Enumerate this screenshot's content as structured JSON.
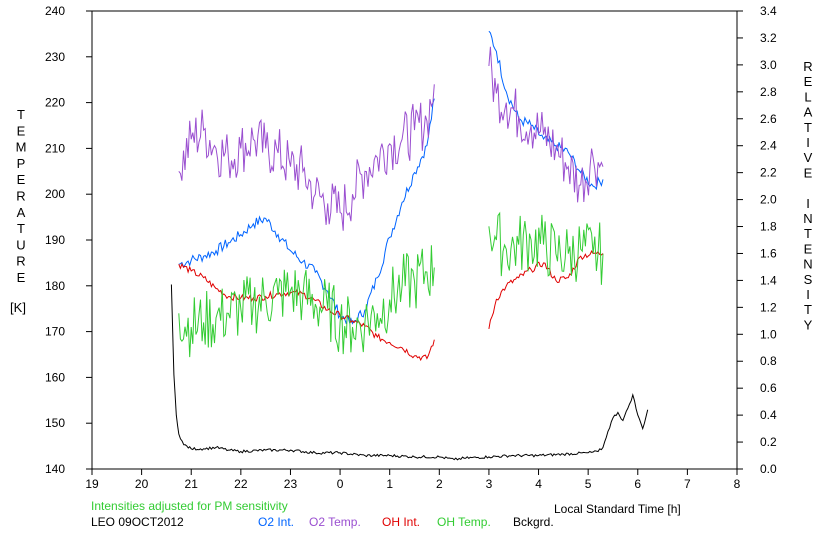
{
  "chart_data": {
    "type": "line",
    "title": "",
    "xlabel": "Local Standard Time [h]",
    "ylabel_left": "TEMPERATURE [K]",
    "ylabel_left_letters": [
      "T",
      "E",
      "M",
      "P",
      "E",
      "R",
      "A",
      "T",
      "U",
      "R",
      "E"
    ],
    "ylabel_left_unit": "[K]",
    "ylabel_right": "RELATIVE INTENSITY",
    "ylabel_right_letters": [
      "R",
      "E",
      "L",
      "A",
      "T",
      "I",
      "V",
      "E",
      " ",
      "I",
      "N",
      "T",
      "E",
      "N",
      "S",
      "I",
      "T",
      "Y"
    ],
    "x_ticks": [
      "19",
      "20",
      "21",
      "22",
      "23",
      "0",
      "1",
      "2",
      "3",
      "4",
      "5",
      "6",
      "7",
      "8"
    ],
    "xlim": [
      19,
      32
    ],
    "ylim_left": [
      140,
      240
    ],
    "y_left_ticks": [
      "140",
      "150",
      "160",
      "170",
      "180",
      "190",
      "200",
      "210",
      "220",
      "230",
      "240"
    ],
    "ylim_right": [
      0.0,
      3.4
    ],
    "y_right_ticks": [
      "0.0",
      "0.2",
      "0.4",
      "0.6",
      "0.8",
      "1.0",
      "1.2",
      "1.4",
      "1.6",
      "1.8",
      "2.0",
      "2.2",
      "2.4",
      "2.6",
      "2.8",
      "3.0",
      "3.2",
      "3.4"
    ],
    "grid": false,
    "note": "Intensities adjusted for PM sensitivity",
    "station_label": "LEO 09OCT2012",
    "series": [
      {
        "name": "O2 Int.",
        "axis": "right",
        "color": "#0064ff",
        "x": [
          20.75,
          21.0,
          21.25,
          21.5,
          21.75,
          22.0,
          22.25,
          22.5,
          22.75,
          23.0,
          23.25,
          23.5,
          23.75,
          24.0,
          24.25,
          24.5,
          24.75,
          25.0,
          25.25,
          25.5,
          25.75,
          25.9,
          27.0,
          27.15,
          27.35,
          27.6,
          27.85,
          28.1,
          28.35,
          28.6,
          28.85,
          29.1,
          29.3
        ],
        "y": [
          1.52,
          1.55,
          1.58,
          1.62,
          1.68,
          1.74,
          1.82,
          1.86,
          1.74,
          1.62,
          1.54,
          1.46,
          1.32,
          1.14,
          1.08,
          1.18,
          1.42,
          1.72,
          1.98,
          2.2,
          2.4,
          2.75,
          3.25,
          3.1,
          2.8,
          2.6,
          2.55,
          2.45,
          2.4,
          2.35,
          2.2,
          2.1,
          2.15
        ]
      },
      {
        "name": "O2 Temp.",
        "axis": "left",
        "color": "#9a4fd0",
        "x": [
          20.75,
          21.0,
          21.25,
          21.5,
          21.75,
          22.0,
          22.25,
          22.5,
          22.75,
          23.0,
          23.25,
          23.5,
          23.75,
          24.0,
          24.25,
          24.5,
          24.75,
          25.0,
          25.25,
          25.5,
          25.75,
          25.9,
          27.0,
          27.15,
          27.35,
          27.6,
          27.85,
          28.1,
          28.35,
          28.6,
          28.85,
          29.1,
          29.3
        ],
        "y": [
          205,
          212,
          214,
          210,
          208,
          210,
          212,
          210,
          209,
          206,
          205,
          200,
          198,
          196,
          200,
          205,
          208,
          211,
          212,
          214,
          216,
          224,
          228,
          222,
          220,
          217,
          215,
          213,
          210,
          206,
          202,
          208,
          206
        ]
      },
      {
        "name": "OH Int.",
        "axis": "right",
        "color": "#e00000",
        "x": [
          20.75,
          21.0,
          21.25,
          21.5,
          21.75,
          22.0,
          22.25,
          22.5,
          22.75,
          23.0,
          23.25,
          23.5,
          23.75,
          24.0,
          24.25,
          24.5,
          24.75,
          25.0,
          25.25,
          25.5,
          25.75,
          25.9,
          27.0,
          27.15,
          27.35,
          27.6,
          27.85,
          28.1,
          28.35,
          28.6,
          28.85,
          29.1,
          29.3
        ],
        "y": [
          1.52,
          1.47,
          1.42,
          1.34,
          1.28,
          1.27,
          1.27,
          1.28,
          1.3,
          1.31,
          1.3,
          1.25,
          1.18,
          1.14,
          1.1,
          1.06,
          0.98,
          0.94,
          0.9,
          0.84,
          0.82,
          0.96,
          1.04,
          1.26,
          1.36,
          1.42,
          1.48,
          1.53,
          1.4,
          1.42,
          1.58,
          1.6,
          1.6
        ]
      },
      {
        "name": "OH Temp.",
        "axis": "left",
        "color": "#33cc33",
        "x": [
          20.75,
          21.0,
          21.25,
          21.5,
          21.75,
          22.0,
          22.25,
          22.5,
          22.75,
          23.0,
          23.25,
          23.5,
          23.75,
          24.0,
          24.25,
          24.5,
          24.75,
          25.0,
          25.25,
          25.5,
          25.75,
          25.9,
          27.0,
          27.15,
          27.35,
          27.6,
          27.85,
          28.1,
          28.35,
          28.6,
          28.85,
          29.1,
          29.3
        ],
        "y": [
          174,
          171,
          172,
          173,
          174,
          175,
          176,
          177,
          178,
          179,
          178,
          176,
          175,
          172,
          171,
          172,
          174,
          177,
          180,
          181,
          183,
          184,
          193,
          190,
          188,
          189,
          190,
          189,
          187,
          187,
          188,
          187,
          187
        ]
      },
      {
        "name": "Bckgrd.",
        "axis": "right",
        "color": "#000000",
        "x": [
          20.6,
          20.62,
          20.65,
          20.7,
          20.75,
          20.85,
          21.0,
          21.25,
          21.5,
          21.75,
          22.0,
          22.5,
          23.0,
          23.5,
          24.0,
          24.5,
          25.0,
          25.5,
          26.0,
          26.3,
          26.5,
          27.0,
          27.5,
          28.0,
          28.5,
          29.0,
          29.2,
          29.3,
          29.4,
          29.5,
          29.6,
          29.7,
          29.8,
          29.9,
          30.0,
          30.1,
          30.2
        ],
        "y": [
          1.37,
          1.1,
          0.7,
          0.4,
          0.26,
          0.18,
          0.15,
          0.15,
          0.16,
          0.14,
          0.13,
          0.14,
          0.14,
          0.12,
          0.12,
          0.1,
          0.1,
          0.09,
          0.09,
          0.07,
          0.08,
          0.09,
          0.1,
          0.1,
          0.11,
          0.12,
          0.13,
          0.16,
          0.28,
          0.38,
          0.42,
          0.36,
          0.45,
          0.55,
          0.4,
          0.3,
          0.44
        ]
      }
    ]
  }
}
